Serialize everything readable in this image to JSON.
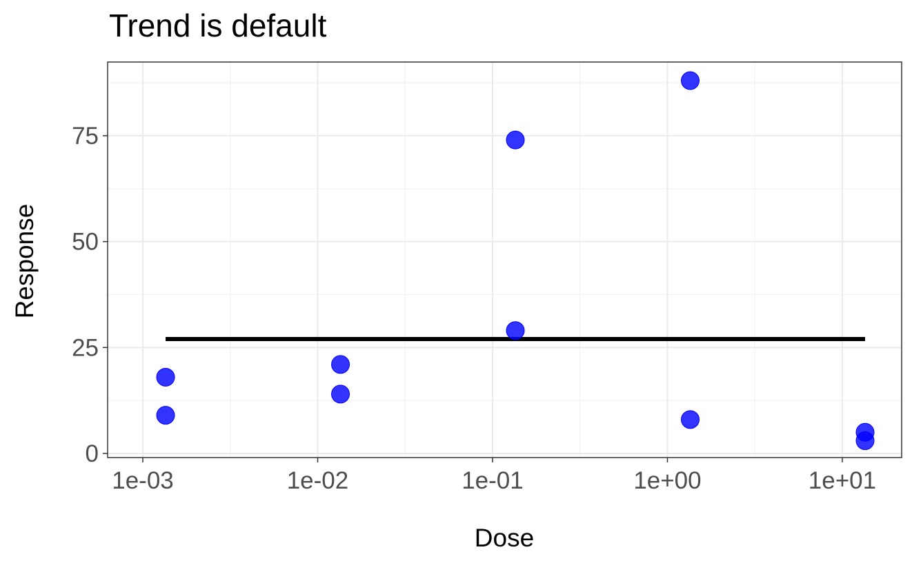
{
  "chart_data": {
    "type": "scatter",
    "title": "Trend is default",
    "xlabel": "Dose",
    "ylabel": "Response",
    "x_scale": "log10",
    "xlim": [
      0.001,
      13.5
    ],
    "ylim": [
      0,
      88
    ],
    "x_ticks": [
      {
        "value": 0.001,
        "label": "1e-03"
      },
      {
        "value": 0.01,
        "label": "1e-02"
      },
      {
        "value": 0.1,
        "label": "1e-01"
      },
      {
        "value": 1,
        "label": "1e+00"
      },
      {
        "value": 10,
        "label": "1e+01"
      }
    ],
    "y_ticks": [
      {
        "value": 0,
        "label": "0"
      },
      {
        "value": 25,
        "label": "25"
      },
      {
        "value": 50,
        "label": "50"
      },
      {
        "value": 75,
        "label": "75"
      }
    ],
    "grid": true,
    "points": [
      {
        "x": 0.00135,
        "y": 18
      },
      {
        "x": 0.00135,
        "y": 9
      },
      {
        "x": 0.0135,
        "y": 21
      },
      {
        "x": 0.0135,
        "y": 14
      },
      {
        "x": 0.135,
        "y": 74
      },
      {
        "x": 0.135,
        "y": 29
      },
      {
        "x": 1.35,
        "y": 88
      },
      {
        "x": 1.35,
        "y": 8
      },
      {
        "x": 13.5,
        "y": 5
      },
      {
        "x": 13.5,
        "y": 3
      }
    ],
    "trend": {
      "x": [
        0.00135,
        13.5
      ],
      "y": [
        27,
        27
      ]
    },
    "colors": {
      "points": "#0000ff",
      "trend": "#000000"
    }
  }
}
